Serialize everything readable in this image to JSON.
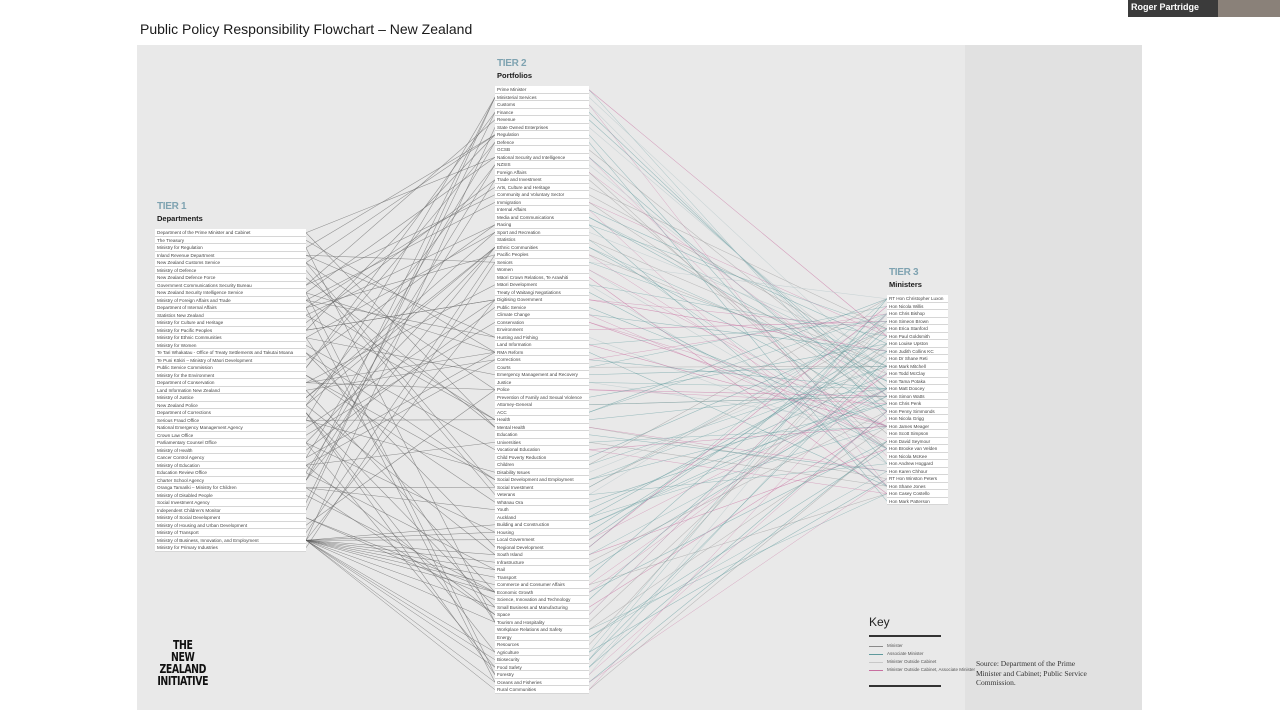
{
  "title": "Public Policy Responsibility Flowchart – New Zealand",
  "video": {
    "participant_name": "Roger Partridge"
  },
  "tier1": {
    "num": "TIER 1",
    "name": "Departments",
    "items": [
      "Department of the Prime Minister and Cabinet",
      "The Treasury",
      "Ministry for Regulation",
      "Inland Revenue Department",
      "New Zealand Customs Service",
      "Ministry of Defence",
      "New Zealand Defence Force",
      "Government Communications Security Bureau",
      "New Zealand Security Intelligence Service",
      "Ministry of Foreign Affairs and Trade",
      "Department of Internal Affairs",
      "Statistics New Zealand",
      "Ministry for Culture and Heritage",
      "Ministry for Pacific Peoples",
      "Ministry for Ethnic Communities",
      "Ministry for Women",
      "Te Tari Whakatau - Office of Treaty Settlements and Takutai Moana",
      "Te Puni Kōkiri – Ministry of Māori Development",
      "Public Service Commission",
      "Ministry for the Environment",
      "Department of Conservation",
      "Land Information New Zealand",
      "Ministry of Justice",
      "New Zealand Police",
      "Department of Corrections",
      "Serious Fraud Office",
      "National Emergency Management Agency",
      "Crown Law Office",
      "Parliamentary Counsel Office",
      "Ministry of Health",
      "Cancer Control Agency",
      "Ministry of Education",
      "Education Review Office",
      "Charter School Agency",
      "Oranga Tamariki – Ministry for Children",
      "Ministry of Disabled People",
      "Social Investment Agency",
      "Independent Children's Monitor",
      "Ministry of Social Development",
      "Ministry of Housing and Urban Development",
      "Ministry of Transport",
      "Ministry of Business, Innovation, and Employment",
      "Ministry for Primary Industries"
    ]
  },
  "tier2": {
    "num": "TIER 2",
    "name": "Portfolios",
    "items": [
      "Prime Minister",
      "Ministerial Services",
      "Customs",
      "Finance",
      "Revenue",
      "State Owned Enterprises",
      "Regulation",
      "Defence",
      "GCSB",
      "National Security and Intelligence",
      "NZSIS",
      "Foreign Affairs",
      "Trade and Investment",
      "Arts, Culture and Heritage",
      "Community and Voluntary Sector",
      "Immigration",
      "Internal Affairs",
      "Media and Communications",
      "Racing",
      "Sport and Recreation",
      "Statistics",
      "Ethnic Communities",
      "Pacific Peoples",
      "Seniors",
      "Women",
      "Māori Crown Relations, Te Arawhiti",
      "Māori Development",
      "Treaty of Waitangi Negotiations",
      "Digitising Government",
      "Public Service",
      "Climate Change",
      "Conservation",
      "Environment",
      "Hunting and Fishing",
      "Land Information",
      "RMA Reform",
      "Corrections",
      "Courts",
      "Emergency Management and Recovery",
      "Justice",
      "Police",
      "Prevention of Family and Sexual Violence",
      "Attorney-General",
      "ACC",
      "Health",
      "Mental Health",
      "Education",
      "Universities",
      "Vocational Education",
      "Child Poverty Reduction",
      "Children",
      "Disability Issues",
      "Social Development and Employment",
      "Social Investment",
      "Veterans",
      "Whānau Ora",
      "Youth",
      "Auckland",
      "Building and Construction",
      "Housing",
      "Local Government",
      "Regional Development",
      "South Island",
      "Infrastructure",
      "Rail",
      "Transport",
      "Commerce and Consumer Affairs",
      "Economic Growth",
      "Science, Innovation and Technology",
      "Small Business and Manufacturing",
      "Space",
      "Tourism and Hospitality",
      "Workplace Relations and Safety",
      "Energy",
      "Resources",
      "Agriculture",
      "Biosecurity",
      "Food Safety",
      "Forestry",
      "Oceans and Fisheries",
      "Rural Communities"
    ]
  },
  "tier3": {
    "num": "TIER 3",
    "name": "Ministers",
    "items": [
      "RT Hon Christopher Luxon",
      "Hon Nicola Willis",
      "Hon Chris Bishop",
      "Hon Simeon Brown",
      "Hon Erica Stanford",
      "Hon Paul Goldsmith",
      "Hon Louise Upston",
      "Hon Judith Collins KC",
      "Hon Dr Shane Reti",
      "Hon Mark Mitchell",
      "Hon Todd McClay",
      "Hon Tama Potaka",
      "Hon Matt Doocey",
      "Hon Simon Watts",
      "Hon Chris Penk",
      "Hon Penny Simmonds",
      "Hon Nicola Grigg",
      "Hon James Meager",
      "Hon Scott Simpson",
      "Hon David Seymour",
      "Hon Brooke van Velden",
      "Hon Nicola McKee",
      "Hon Andrew Hoggard",
      "Hon Karen Chhour",
      "RT Hon Winston Peters",
      "Hon Shane Jones",
      "Hon Casey Costello",
      "Hon Mark Patterson"
    ]
  },
  "logo": {
    "line1": "THE",
    "line2": "NEW ZEALAND",
    "line3": "INITIATIVE"
  },
  "key": {
    "title": "Key",
    "entries": [
      {
        "label": "Minister",
        "color": "#8a8a8a"
      },
      {
        "label": "Associate Minister",
        "color": "#5f9a9d"
      },
      {
        "label": "Minister Outside Cabinet",
        "color": "#c8c8c8"
      },
      {
        "label": "Minister Outside Cabinet, Associate Minister",
        "color": "#c86fa0"
      }
    ]
  },
  "source": "Source: Department of the Prime Minister and Cabinet; Public Service Commission."
}
